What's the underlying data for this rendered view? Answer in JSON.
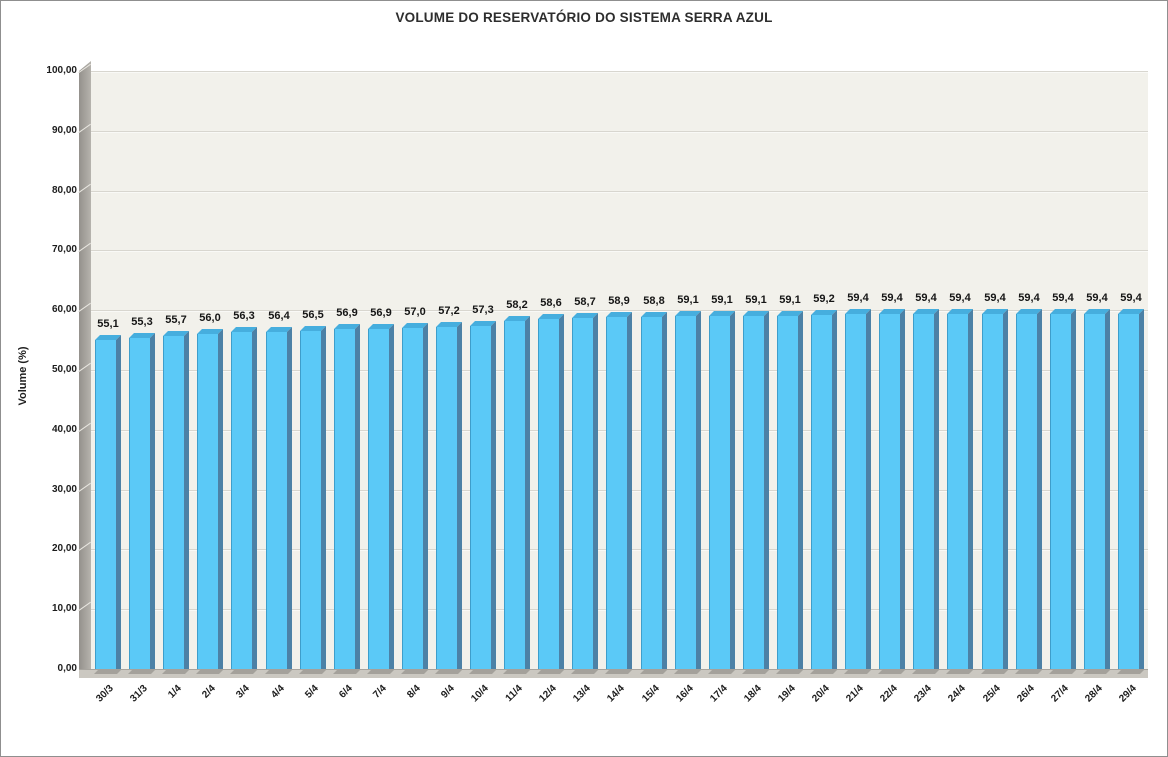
{
  "chart": {
    "title": "VOLUME DO RESERVATÓRIO DO SISTEMA SERRA AZUL",
    "y_axis_title": "Volume (%)"
  },
  "chart_data": {
    "type": "bar",
    "title": "VOLUME DO RESERVATÓRIO DO SISTEMA SERRA AZUL",
    "xlabel": "",
    "ylabel": "Volume (%)",
    "ylim": [
      0,
      100
    ],
    "grid": true,
    "legend": false,
    "y_ticks": [
      "0,00",
      "10,00",
      "20,00",
      "30,00",
      "40,00",
      "50,00",
      "60,00",
      "70,00",
      "80,00",
      "90,00",
      "100,00"
    ],
    "categories": [
      "30/3",
      "31/3",
      "1/4",
      "2/4",
      "3/4",
      "4/4",
      "5/4",
      "6/4",
      "7/4",
      "8/4",
      "9/4",
      "10/4",
      "11/4",
      "12/4",
      "13/4",
      "14/4",
      "15/4",
      "16/4",
      "17/4",
      "18/4",
      "19/4",
      "20/4",
      "21/4",
      "22/4",
      "23/4",
      "24/4",
      "25/4",
      "26/4",
      "27/4",
      "28/4",
      "29/4"
    ],
    "values": [
      55.1,
      55.3,
      55.7,
      56.0,
      56.3,
      56.4,
      56.5,
      56.9,
      56.9,
      57.0,
      57.2,
      57.3,
      58.2,
      58.6,
      58.7,
      58.9,
      58.8,
      59.1,
      59.1,
      59.1,
      59.1,
      59.2,
      59.4,
      59.4,
      59.4,
      59.4,
      59.4,
      59.4,
      59.4,
      59.4,
      59.4
    ],
    "value_labels": [
      "55,1",
      "55,3",
      "55,7",
      "56,0",
      "56,3",
      "56,4",
      "56,5",
      "56,9",
      "56,9",
      "57,0",
      "57,2",
      "57,3",
      "58,2",
      "58,6",
      "58,7",
      "58,9",
      "58,8",
      "59,1",
      "59,1",
      "59,1",
      "59,1",
      "59,2",
      "59,4",
      "59,4",
      "59,4",
      "59,4",
      "59,4",
      "59,4",
      "59,4",
      "59,4",
      "59,4"
    ],
    "colors": {
      "bar_front": "#5BC9F7",
      "bar_top": "#46AEDE",
      "bar_side": "#4C81A6",
      "bar_edge": "#3E9ECB",
      "plot_background": "#F2F1EB",
      "gridline": "#D8D6CF",
      "wall": "#A4A19B",
      "floor": "#CBC8C1",
      "base_shadow": "#A4A19B",
      "text": "#1C1C1C"
    }
  }
}
